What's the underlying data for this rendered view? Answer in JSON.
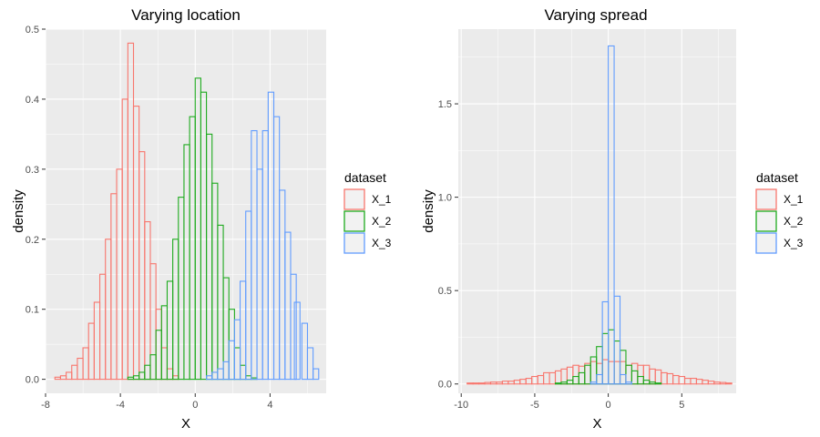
{
  "chart_data": [
    {
      "type": "histogram",
      "title": "Varying location",
      "xlabel": "X",
      "ylabel": "density",
      "xlim": [
        -8.0,
        7.0
      ],
      "ylim": [
        -0.02,
        0.5
      ],
      "xticks": [
        -8,
        -4,
        0,
        4
      ],
      "xtick_labels": [
        "-8",
        "-4",
        "0",
        "4"
      ],
      "yticks": [
        0.0,
        0.1,
        0.2,
        0.3,
        0.4,
        0.5
      ],
      "ytick_labels": [
        "0.0",
        "0.1",
        "0.2",
        "0.3",
        "0.4",
        "0.5"
      ],
      "grid": true,
      "legend_title": "dataset",
      "legend_position": "right",
      "series": [
        {
          "name": "X_1",
          "color": "#f8766d",
          "bin_width": 0.3,
          "bin_starts": [
            -7.5,
            -7.2,
            -6.9,
            -6.6,
            -6.3,
            -6.0,
            -5.7,
            -5.4,
            -5.1,
            -4.8,
            -4.5,
            -4.2,
            -3.9,
            -3.6,
            -3.3,
            -3.0,
            -2.7,
            -2.4,
            -2.1,
            -1.8,
            -1.5,
            -1.2
          ],
          "values": [
            0.003,
            0.005,
            0.01,
            0.02,
            0.03,
            0.045,
            0.08,
            0.11,
            0.15,
            0.2,
            0.265,
            0.3,
            0.4,
            0.48,
            0.39,
            0.325,
            0.225,
            0.165,
            0.1,
            0.045,
            0.015,
            0.005
          ]
        },
        {
          "name": "X_2",
          "color": "#1eaa1e",
          "bin_width": 0.3,
          "bin_starts": [
            -3.6,
            -3.3,
            -3.0,
            -2.7,
            -2.4,
            -2.1,
            -1.8,
            -1.5,
            -1.2,
            -0.9,
            -0.6,
            -0.3,
            0.0,
            0.3,
            0.6,
            0.9,
            1.2,
            1.5,
            1.8,
            2.1,
            2.4,
            2.7,
            3.0
          ],
          "values": [
            0.003,
            0.005,
            0.01,
            0.02,
            0.035,
            0.07,
            0.105,
            0.14,
            0.2,
            0.26,
            0.335,
            0.375,
            0.43,
            0.41,
            0.35,
            0.28,
            0.22,
            0.145,
            0.1,
            0.045,
            0.02,
            0.005,
            0.002
          ]
        },
        {
          "name": "X_3",
          "color": "#619cff",
          "bin_width": 0.3,
          "bin_starts": [
            0.6,
            0.9,
            1.2,
            1.5,
            1.8,
            2.1,
            2.4,
            2.7,
            3.0,
            3.3,
            3.6,
            3.9,
            4.2,
            4.5,
            4.8,
            5.1,
            5.3,
            5.7,
            6.0,
            6.3
          ],
          "values": [
            0.005,
            0.01,
            0.015,
            0.025,
            0.055,
            0.085,
            0.14,
            0.24,
            0.355,
            0.3,
            0.355,
            0.41,
            0.375,
            0.27,
            0.21,
            0.15,
            0.11,
            0.08,
            0.045,
            0.015
          ]
        }
      ]
    },
    {
      "type": "histogram",
      "title": "Varying spread",
      "xlabel": "X",
      "ylabel": "density",
      "xlim": [
        -10.2,
        8.7
      ],
      "ylim": [
        -0.05,
        1.9
      ],
      "xticks": [
        -10,
        -5,
        0,
        5
      ],
      "xtick_labels": [
        "-10",
        "-5",
        "0",
        "5"
      ],
      "yticks": [
        0.0,
        0.5,
        1.0,
        1.5
      ],
      "ytick_labels": [
        "0.0",
        "0.5",
        "1.0",
        "1.5"
      ],
      "grid": true,
      "legend_title": "dataset",
      "legend_position": "right",
      "series": [
        {
          "name": "X_1",
          "color": "#f8766d",
          "bin_width": 0.4,
          "bin_starts": [
            -9.6,
            -9.2,
            -8.8,
            -8.4,
            -8.0,
            -7.6,
            -7.2,
            -6.8,
            -6.4,
            -6.0,
            -5.6,
            -5.2,
            -4.8,
            -4.4,
            -4.0,
            -3.6,
            -3.2,
            -2.8,
            -2.4,
            -2.0,
            -1.6,
            -1.2,
            -0.8,
            -0.4,
            0.0,
            0.4,
            0.8,
            1.2,
            1.6,
            2.0,
            2.4,
            2.8,
            3.2,
            3.6,
            4.0,
            4.4,
            4.8,
            5.2,
            5.6,
            6.0,
            6.4,
            6.8,
            7.2,
            7.6,
            8.0
          ],
          "values": [
            0.005,
            0.005,
            0.005,
            0.008,
            0.01,
            0.01,
            0.015,
            0.015,
            0.02,
            0.025,
            0.03,
            0.04,
            0.045,
            0.06,
            0.06,
            0.07,
            0.08,
            0.09,
            0.1,
            0.095,
            0.11,
            0.12,
            0.11,
            0.13,
            0.12,
            0.12,
            0.12,
            0.1,
            0.11,
            0.1,
            0.1,
            0.08,
            0.075,
            0.06,
            0.055,
            0.045,
            0.04,
            0.03,
            0.03,
            0.025,
            0.02,
            0.015,
            0.01,
            0.008,
            0.005
          ]
        },
        {
          "name": "X_2",
          "color": "#1eaa1e",
          "bin_width": 0.4,
          "bin_starts": [
            -3.6,
            -3.2,
            -2.8,
            -2.4,
            -2.0,
            -1.6,
            -1.2,
            -0.8,
            -0.4,
            0.0,
            0.4,
            0.8,
            1.2,
            1.6,
            2.0,
            2.4,
            2.8,
            3.2
          ],
          "values": [
            0.005,
            0.01,
            0.02,
            0.04,
            0.06,
            0.1,
            0.145,
            0.2,
            0.27,
            0.29,
            0.23,
            0.18,
            0.1,
            0.07,
            0.04,
            0.02,
            0.01,
            0.005
          ]
        },
        {
          "name": "X_3",
          "color": "#619cff",
          "bin_width": 0.4,
          "bin_starts": [
            -1.2,
            -0.8,
            -0.4,
            0.0,
            0.4,
            0.8,
            1.2
          ],
          "values": [
            0.01,
            0.05,
            0.44,
            1.81,
            0.47,
            0.05,
            0.01
          ]
        }
      ]
    }
  ]
}
